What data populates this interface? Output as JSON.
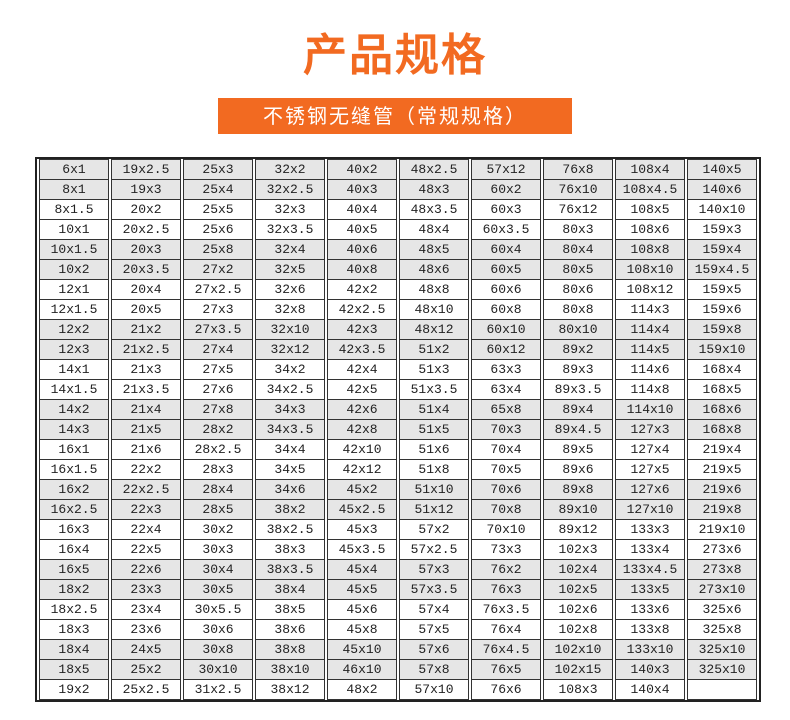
{
  "header": {
    "title": "产品规格",
    "subtitle": "不锈钢无缝管（常规规格）",
    "accent_color": "#f26a21"
  },
  "table": {
    "columns": [
      [
        "6x1",
        "8x1",
        "8x1.5",
        "10x1",
        "10x1.5",
        "10x2",
        "12x1",
        "12x1.5",
        "12x2",
        "12x3",
        "14x1",
        "14x1.5",
        "14x2",
        "14x3",
        "16x1",
        "16x1.5",
        "16x2",
        "16x2.5",
        "16x3",
        "16x4",
        "16x5",
        "18x2",
        "18x2.5",
        "18x3",
        "18x4",
        "18x5",
        "19x2"
      ],
      [
        "19x2.5",
        "19x3",
        "20x2",
        "20x2.5",
        "20x3",
        "20x3.5",
        "20x4",
        "20x5",
        "21x2",
        "21x2.5",
        "21x3",
        "21x3.5",
        "21x4",
        "21x5",
        "21x6",
        "22x2",
        "22x2.5",
        "22x3",
        "22x4",
        "22x5",
        "22x6",
        "23x3",
        "23x4",
        "23x6",
        "24x5",
        "25x2",
        "25x2.5"
      ],
      [
        "25x3",
        "25x4",
        "25x5",
        "25x6",
        "25x8",
        "27x2",
        "27x2.5",
        "27x3",
        "27x3.5",
        "27x4",
        "27x5",
        "27x6",
        "27x8",
        "28x2",
        "28x2.5",
        "28x3",
        "28x4",
        "28x5",
        "30x2",
        "30x3",
        "30x4",
        "30x5",
        "30x5.5",
        "30x6",
        "30x8",
        "30x10",
        "31x2.5"
      ],
      [
        "32x2",
        "32x2.5",
        "32x3",
        "32x3.5",
        "32x4",
        "32x5",
        "32x6",
        "32x8",
        "32x10",
        "32x12",
        "34x2",
        "34x2.5",
        "34x3",
        "34x3.5",
        "34x4",
        "34x5",
        "34x6",
        "38x2",
        "38x2.5",
        "38x3",
        "38x3.5",
        "38x4",
        "38x5",
        "38x6",
        "38x8",
        "38x10",
        "38x12"
      ],
      [
        "40x2",
        "40x3",
        "40x4",
        "40x5",
        "40x6",
        "40x8",
        "42x2",
        "42x2.5",
        "42x3",
        "42x3.5",
        "42x4",
        "42x5",
        "42x6",
        "42x8",
        "42x10",
        "42x12",
        "45x2",
        "45x2.5",
        "45x3",
        "45x3.5",
        "45x4",
        "45x5",
        "45x6",
        "45x8",
        "45x10",
        "46x10",
        "48x2"
      ],
      [
        "48x2.5",
        "48x3",
        "48x3.5",
        "48x4",
        "48x5",
        "48x6",
        "48x8",
        "48x10",
        "48x12",
        "51x2",
        "51x3",
        "51x3.5",
        "51x4",
        "51x5",
        "51x6",
        "51x8",
        "51x10",
        "51x12",
        "57x2",
        "57x2.5",
        "57x3",
        "57x3.5",
        "57x4",
        "57x5",
        "57x6",
        "57x8",
        "57x10"
      ],
      [
        "57x12",
        "60x2",
        "60x3",
        "60x3.5",
        "60x4",
        "60x5",
        "60x6",
        "60x8",
        "60x10",
        "60x12",
        "63x3",
        "63x4",
        "65x8",
        "70x3",
        "70x4",
        "70x5",
        "70x6",
        "70x8",
        "70x10",
        "73x3",
        "76x2",
        "76x3",
        "76x3.5",
        "76x4",
        "76x4.5",
        "76x5",
        "76x6"
      ],
      [
        "76x8",
        "76x10",
        "76x12",
        "80x3",
        "80x4",
        "80x5",
        "80x6",
        "80x8",
        "80x10",
        "89x2",
        "89x3",
        "89x3.5",
        "89x4",
        "89x4.5",
        "89x5",
        "89x6",
        "89x8",
        "89x10",
        "89x12",
        "102x3",
        "102x4",
        "102x5",
        "102x6",
        "102x8",
        "102x10",
        "102x15",
        "108x3"
      ],
      [
        "108x4",
        "108x4.5",
        "108x5",
        "108x6",
        "108x8",
        "108x10",
        "108x12",
        "114x3",
        "114x4",
        "114x5",
        "114x6",
        "114x8",
        "114x10",
        "127x3",
        "127x4",
        "127x5",
        "127x6",
        "127x10",
        "133x3",
        "133x4",
        "133x4.5",
        "133x5",
        "133x6",
        "133x8",
        "133x10",
        "140x3",
        "140x4"
      ],
      [
        "140x5",
        "140x6",
        "140x10",
        "159x3",
        "159x4",
        "159x4.5",
        "159x5",
        "159x6",
        "159x8",
        "159x10",
        "168x4",
        "168x5",
        "168x6",
        "168x8",
        "219x4",
        "219x5",
        "219x6",
        "219x8",
        "219x10",
        "273x6",
        "273x8",
        "273x10",
        "325x6",
        "325x8",
        "325x10",
        "325x10",
        ""
      ]
    ]
  }
}
